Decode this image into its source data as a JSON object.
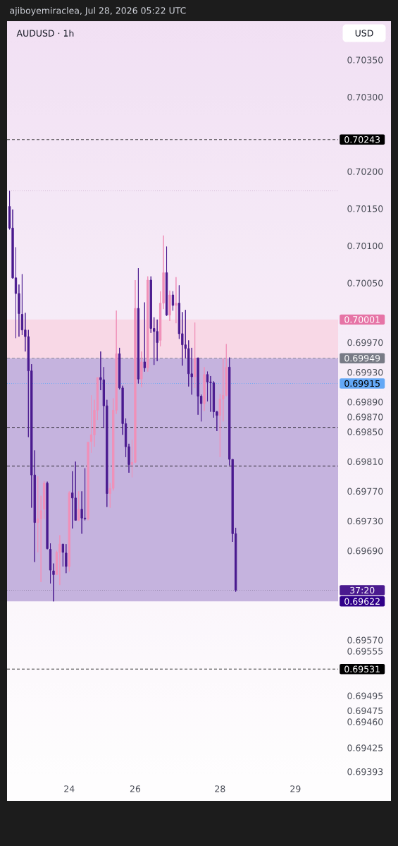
{
  "chart_data": {
    "type": "candlestick",
    "title": "AUDUSD · 1h",
    "ylabel": "USD",
    "annotations": [
      "ajiboyemiraclea, Jul 28, 2026 05:22 UTC",
      "37:20"
    ],
    "categories": [
      null,
      null,
      null,
      null,
      null,
      null,
      null,
      null,
      null,
      null,
      null,
      null,
      null,
      null,
      null,
      null,
      null,
      null,
      null,
      "24",
      null,
      null,
      null,
      null,
      null,
      null,
      null,
      null,
      null,
      null,
      null,
      null,
      null,
      null,
      null,
      null,
      null,
      null,
      null,
      null,
      "26",
      null,
      null,
      null,
      null,
      null,
      null,
      null,
      null,
      null,
      null,
      null,
      null,
      null,
      null,
      null,
      null,
      null,
      null,
      null,
      null,
      null,
      null,
      null,
      null,
      null,
      null,
      "28",
      null,
      null,
      null,
      null,
      null,
      null,
      null,
      null,
      null,
      null,
      null,
      null,
      null,
      null,
      null,
      null,
      null,
      null,
      null,
      null,
      null,
      null,
      null,
      "29",
      null,
      null,
      null,
      null,
      null,
      null,
      null,
      null,
      null,
      null,
      null,
      null,
      null
    ],
    "ohlc": [
      [
        0.70153,
        0.70174,
        0.70122,
        0.70124
      ],
      [
        0.70124,
        0.70149,
        0.70056,
        0.70057
      ],
      [
        0.70057,
        0.70098,
        0.69976,
        0.70036
      ],
      [
        0.70036,
        0.70048,
        0.69978,
        0.70009
      ],
      [
        0.70008,
        0.70062,
        0.6998,
        0.69987
      ],
      [
        0.69987,
        0.7001,
        0.69958,
        0.69978
      ],
      [
        0.69978,
        0.69987,
        0.69843,
        0.69932
      ],
      [
        0.69932,
        0.69941,
        0.69748,
        0.69792
      ],
      [
        0.69792,
        0.69825,
        0.69675,
        0.69728
      ],
      [
        0.69728,
        0.6979,
        0.69688,
        0.69733
      ],
      [
        0.69733,
        0.69764,
        0.69648,
        0.69744
      ],
      [
        0.69746,
        0.69784,
        0.69733,
        0.69781
      ],
      [
        0.69781,
        0.69783,
        0.69692,
        0.69693
      ],
      [
        0.69692,
        0.697,
        0.69646,
        0.69664
      ],
      [
        0.69663,
        0.69673,
        0.69622,
        0.69658
      ],
      [
        0.69658,
        0.6969,
        0.69658,
        0.69688
      ],
      [
        0.69688,
        0.69711,
        0.69644,
        0.69699
      ],
      [
        0.69699,
        0.69699,
        0.69669,
        0.69688
      ],
      [
        0.69687,
        0.69699,
        0.6966,
        0.69669
      ],
      [
        0.69669,
        0.6977,
        0.69662,
        0.69768
      ],
      [
        0.69768,
        0.69797,
        0.6972,
        0.69761
      ],
      [
        0.69761,
        0.6981,
        0.69731,
        0.69731
      ],
      [
        0.69731,
        0.6977,
        0.6973,
        0.69746
      ],
      [
        0.69746,
        0.6977,
        0.69713,
        0.69734
      ],
      [
        0.69734,
        0.69801,
        0.69731,
        0.69733
      ],
      [
        0.69733,
        0.69836,
        0.69731,
        0.69836
      ],
      [
        0.69837,
        0.69899,
        0.69822,
        0.69846
      ],
      [
        0.69846,
        0.69893,
        0.6983,
        0.69879
      ],
      [
        0.69879,
        0.69923,
        0.69866,
        0.69923
      ],
      [
        0.69923,
        0.69958,
        0.69906,
        0.6992
      ],
      [
        0.6992,
        0.69937,
        0.69855,
        0.69885
      ],
      [
        0.69885,
        0.69893,
        0.69749,
        0.69767
      ],
      [
        0.69767,
        0.69781,
        0.69748,
        0.69774
      ],
      [
        0.69774,
        0.69895,
        0.69771,
        0.69879
      ],
      [
        0.69879,
        0.70013,
        0.69874,
        0.69955
      ],
      [
        0.69955,
        0.69963,
        0.69907,
        0.69909
      ],
      [
        0.69909,
        0.69912,
        0.69846,
        0.69861
      ],
      [
        0.69861,
        0.69868,
        0.69816,
        0.6983
      ],
      [
        0.6983,
        0.69834,
        0.69795,
        0.69806
      ],
      [
        0.69806,
        0.69839,
        0.69789,
        0.69809
      ],
      [
        0.69809,
        0.70054,
        0.69808,
        0.70016
      ],
      [
        0.70016,
        0.7007,
        0.69915,
        0.69921
      ],
      [
        0.69921,
        0.69958,
        0.6991,
        0.69944
      ],
      [
        0.69944,
        0.70024,
        0.69931,
        0.69936
      ],
      [
        0.69936,
        0.70059,
        0.69931,
        0.70054
      ],
      [
        0.70054,
        0.70059,
        0.69983,
        0.69989
      ],
      [
        0.69989,
        0.70004,
        0.6994,
        0.69985
      ],
      [
        0.69985,
        0.70001,
        0.69945,
        0.6997
      ],
      [
        0.69973,
        0.70039,
        0.69965,
        0.70023
      ],
      [
        0.70023,
        0.70114,
        0.70015,
        0.70064
      ],
      [
        0.70064,
        0.70099,
        0.70006,
        0.70007
      ],
      [
        0.70007,
        0.7004,
        0.69999,
        0.70034
      ],
      [
        0.70034,
        0.70039,
        0.70013,
        0.7002
      ],
      [
        0.7002,
        0.70058,
        0.69996,
        0.70023
      ],
      [
        0.70023,
        0.70047,
        0.69975,
        0.69982
      ],
      [
        0.69982,
        0.70011,
        0.69939,
        0.69967
      ],
      [
        0.69967,
        0.70014,
        0.69949,
        0.69962
      ],
      [
        0.69962,
        0.69973,
        0.69911,
        0.69928
      ],
      [
        0.69928,
        0.69963,
        0.699,
        0.69924
      ],
      [
        0.69924,
        0.69997,
        0.69909,
        0.69949
      ],
      [
        0.69949,
        0.6995,
        0.69873,
        0.69898
      ],
      [
        0.69898,
        0.699,
        0.69864,
        0.69888
      ],
      [
        0.69888,
        0.69937,
        0.69878,
        0.69927
      ],
      [
        0.69927,
        0.69931,
        0.69891,
        0.69917
      ],
      [
        0.69917,
        0.69925,
        0.69877,
        0.69916
      ],
      [
        0.69916,
        0.69918,
        0.69869,
        0.69877
      ],
      [
        0.69877,
        0.69878,
        0.69851,
        0.69872
      ],
      [
        0.69872,
        0.69901,
        0.69816,
        0.69894
      ],
      [
        0.69894,
        0.69949,
        0.69864,
        0.69899
      ],
      [
        0.69899,
        0.69968,
        0.69898,
        0.69937
      ],
      [
        0.69937,
        0.6995,
        0.69805,
        0.69813
      ],
      [
        0.69813,
        0.69813,
        0.69702,
        0.69713
      ],
      [
        0.69713,
        0.69721,
        0.69635,
        0.69637
      ],
      null,
      null,
      null,
      null,
      null,
      null,
      null,
      null,
      null,
      null,
      null,
      null,
      null,
      null,
      null,
      null,
      null,
      null,
      null,
      null,
      null,
      null,
      null,
      null,
      null,
      null,
      null,
      null,
      null,
      null,
      null,
      null
    ],
    "colors": [
      "#4a1a8f",
      "#4a1a8f",
      "#4a1a8f",
      "#4a1a8f",
      "#4a1a8f",
      "#4a1a8f",
      "#4a1a8f",
      "#4a1a8f",
      "#4a1a8f",
      "#f090b8",
      "#f090b8",
      "#f090b8",
      "#4a1a8f",
      "#4a1a8f",
      "#4a1a8f",
      "#f090b8",
      "#f090b8",
      "#4a1a8f",
      "#4a1a8f",
      "#f090b8",
      "#4a1a8f",
      "#4a1a8f",
      "#f090b8",
      "#4a1a8f",
      "#4a1a8f",
      "#f090b8",
      "#f090b8",
      "#f090b8",
      "#f090b8",
      "#4a1a8f",
      "#4a1a8f",
      "#4a1a8f",
      "#f090b8",
      "#f090b8",
      "#f090b8",
      "#4a1a8f",
      "#4a1a8f",
      "#4a1a8f",
      "#4a1a8f",
      "#f090b8",
      "#f090b8",
      "#4a1a8f",
      "#f090b8",
      "#4a1a8f",
      "#f090b8",
      "#4a1a8f",
      "#4a1a8f",
      "#4a1a8f",
      "#f090b8",
      "#f090b8",
      "#4a1a8f",
      "#f090b8",
      "#4a1a8f",
      "#f090b8",
      "#4a1a8f",
      "#4a1a8f",
      "#4a1a8f",
      "#4a1a8f",
      "#4a1a8f",
      "#f090b8",
      "#4a1a8f",
      "#4a1a8f",
      "#f090b8",
      "#4a1a8f",
      "#4a1a8f",
      "#4a1a8f",
      "#4a1a8f",
      "#f090b8",
      "#f090b8",
      "#f090b8",
      "#4a1a8f",
      "#4a1a8f",
      "#4a1a8f",
      null,
      null,
      null,
      null,
      null,
      null,
      null,
      null,
      null,
      null,
      null,
      null,
      null,
      null,
      null,
      null,
      null,
      null,
      null,
      null,
      null,
      null,
      null,
      null,
      null,
      null,
      null,
      null,
      null,
      null,
      null,
      null
    ],
    "ylim": [
      0.69393,
      0.70402
    ],
    "yticks": [
      {
        "value": 0.7035,
        "label": "0.70350"
      },
      {
        "value": 0.703,
        "label": "0.70300"
      },
      {
        "value": 0.702,
        "label": "0.70200"
      },
      {
        "value": 0.7015,
        "label": "0.70150"
      },
      {
        "value": 0.701,
        "label": "0.70100"
      },
      {
        "value": 0.7005,
        "label": "0.70050"
      },
      {
        "value": 0.6997,
        "label": "0.69970"
      },
      {
        "value": 0.6993,
        "label": "0.69930"
      },
      {
        "value": 0.6989,
        "label": "0.69890"
      },
      {
        "value": 0.6987,
        "label": "0.69870"
      },
      {
        "value": 0.6985,
        "label": "0.69850"
      },
      {
        "value": 0.6981,
        "label": "0.69810"
      },
      {
        "value": 0.6977,
        "label": "0.69770"
      },
      {
        "value": 0.6973,
        "label": "0.69730"
      },
      {
        "value": 0.6969,
        "label": "0.69690"
      },
      {
        "value": 0.6957,
        "label": "0.69570"
      },
      {
        "value": 0.69555,
        "label": "0.69555"
      },
      {
        "value": 0.69495,
        "label": "0.69495"
      },
      {
        "value": 0.69475,
        "label": "0.69475"
      },
      {
        "value": 0.6946,
        "label": "0.69460"
      },
      {
        "value": 0.69425,
        "label": "0.69425"
      },
      {
        "value": 0.69393,
        "label": "0.69393"
      }
    ],
    "bands": [
      {
        "axis": "y",
        "from": 0.69949,
        "to": 0.70001,
        "label": "0.70001",
        "color": "#f8d8e6"
      },
      {
        "axis": "y",
        "from": 0.69949,
        "to": 0.69622,
        "label": "0.69622",
        "color": "#c5b3de"
      }
    ],
    "ref_lines": [
      {
        "axis": "y",
        "value": 0.70243,
        "label": "0.70243",
        "color": "#000000",
        "line_style": "dashed"
      },
      {
        "axis": "y",
        "value": 0.70174,
        "color": "#c9a9cc",
        "line_style": "dotted"
      },
      {
        "axis": "y",
        "value": 0.69949,
        "label": "0.69949",
        "color": "#787b86",
        "line_style": "dashed"
      },
      {
        "axis": "y",
        "value": 0.69915,
        "label": "0.69915",
        "color": "#64a8f6",
        "line_style": "dotted"
      },
      {
        "axis": "y",
        "value": 0.69856,
        "color": "#000000",
        "line_style": "dashed"
      },
      {
        "axis": "y",
        "value": 0.69804,
        "color": "#000000",
        "line_style": "dashed"
      },
      {
        "axis": "y",
        "value": 0.69637,
        "color": "#8a7fa0",
        "line_style": "dotted"
      },
      {
        "axis": "y",
        "value": 0.69531,
        "label": "0.69531",
        "color": "#000000",
        "line_style": "dashed"
      }
    ]
  }
}
